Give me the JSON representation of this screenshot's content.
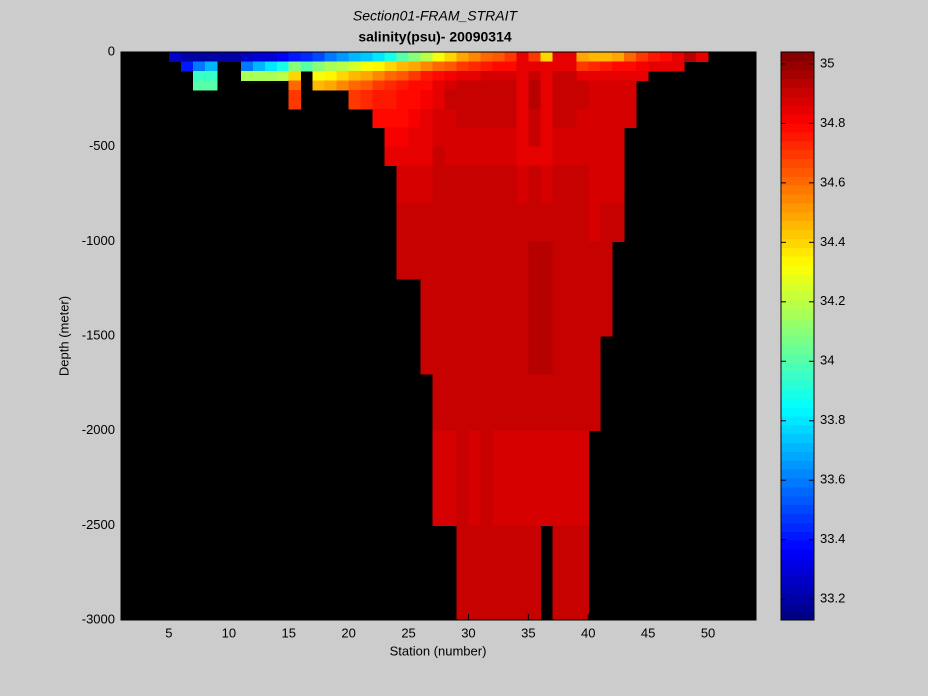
{
  "chart_data": {
    "type": "heatmap",
    "title": "Section01-FRAM_STRAIT",
    "subtitle": "salinity(psu)- 20090314",
    "x_label": "Station (number)",
    "y_label": "Depth (meter)",
    "xlim": [
      1,
      54
    ],
    "xticks": [
      5,
      10,
      15,
      20,
      25,
      30,
      35,
      40,
      45,
      50
    ],
    "ylim": [
      -3000,
      0
    ],
    "yticks": [
      0,
      -500,
      -1000,
      -1500,
      -2000,
      -2500,
      -3000
    ],
    "clim": [
      33.13,
      35.04
    ],
    "cticks": [
      33.2,
      33.4,
      33.6,
      33.8,
      34,
      34.2,
      34.4,
      34.6,
      34.8,
      35
    ],
    "colormap": "jet",
    "background": "#000000",
    "x": [
      1,
      2,
      3,
      4,
      5,
      6,
      7,
      8,
      9,
      10,
      11,
      12,
      13,
      14,
      15,
      16,
      17,
      18,
      19,
      20,
      21,
      22,
      23,
      24,
      25,
      26,
      27,
      28,
      29,
      30,
      31,
      32,
      33,
      34,
      35,
      36,
      37,
      38,
      39,
      40,
      41,
      42,
      43,
      44,
      45,
      46,
      47,
      48,
      49,
      50,
      51,
      52,
      53
    ],
    "depth_edges": [
      0,
      -50,
      -100,
      -150,
      -200,
      -300,
      -400,
      -500,
      -600,
      -800,
      -1000,
      -1200,
      -1500,
      -1700,
      -2000,
      -2500,
      -3000
    ],
    "z": [
      [
        null,
        null,
        null,
        null,
        33.25,
        33.2,
        33.2,
        33.2,
        33.2,
        33.2,
        33.25,
        33.3,
        33.3,
        33.35,
        33.4,
        33.45,
        33.5,
        33.6,
        33.65,
        33.7,
        33.75,
        33.8,
        33.9,
        34.0,
        34.1,
        34.2,
        34.3,
        34.4,
        34.5,
        34.55,
        34.6,
        34.65,
        34.7,
        34.85,
        34.7,
        34.4,
        34.85,
        34.85,
        34.5,
        34.45,
        34.45,
        34.5,
        34.6,
        34.7,
        34.75,
        34.8,
        34.85,
        34.95,
        34.85,
        null,
        null,
        null,
        null
      ],
      [
        null,
        null,
        null,
        null,
        null,
        33.4,
        33.6,
        33.7,
        null,
        null,
        33.6,
        33.7,
        33.8,
        33.9,
        34.1,
        34.0,
        34.1,
        34.15,
        34.2,
        34.25,
        34.3,
        34.35,
        34.4,
        34.45,
        34.5,
        34.55,
        34.6,
        34.65,
        34.7,
        34.72,
        34.75,
        34.78,
        34.8,
        34.85,
        34.85,
        34.85,
        34.85,
        34.85,
        34.7,
        34.72,
        34.75,
        34.78,
        34.8,
        34.82,
        34.85,
        34.85,
        34.85,
        null,
        null,
        null,
        null,
        null,
        null
      ],
      [
        null,
        null,
        null,
        null,
        null,
        null,
        33.95,
        33.95,
        null,
        null,
        34.15,
        34.15,
        34.15,
        34.2,
        34.4,
        null,
        34.3,
        34.35,
        34.4,
        34.45,
        34.5,
        34.55,
        34.6,
        34.65,
        34.7,
        34.75,
        34.8,
        34.82,
        34.85,
        34.85,
        34.88,
        34.88,
        34.88,
        34.85,
        34.9,
        34.85,
        34.9,
        34.9,
        34.85,
        34.85,
        34.85,
        34.85,
        34.85,
        34.85,
        null,
        null,
        null,
        null,
        null,
        null,
        null,
        null,
        null
      ],
      [
        null,
        null,
        null,
        null,
        null,
        null,
        34.0,
        34.0,
        null,
        null,
        null,
        null,
        null,
        null,
        34.6,
        null,
        34.45,
        34.5,
        34.55,
        34.6,
        34.65,
        34.7,
        34.72,
        34.75,
        34.78,
        34.8,
        34.85,
        34.88,
        34.9,
        34.9,
        34.92,
        34.92,
        34.92,
        34.85,
        34.95,
        34.85,
        34.92,
        34.92,
        34.9,
        34.88,
        34.88,
        34.88,
        34.88,
        null,
        null,
        null,
        null,
        null,
        null,
        null,
        null,
        null,
        null
      ],
      [
        null,
        null,
        null,
        null,
        null,
        null,
        null,
        null,
        null,
        null,
        null,
        null,
        null,
        null,
        34.7,
        null,
        null,
        null,
        null,
        34.7,
        34.72,
        34.75,
        34.75,
        34.78,
        34.8,
        34.82,
        34.85,
        34.9,
        34.92,
        34.92,
        34.92,
        34.92,
        34.9,
        34.85,
        34.95,
        34.85,
        34.92,
        34.92,
        34.9,
        34.88,
        34.88,
        34.88,
        34.88,
        null,
        null,
        null,
        null,
        null,
        null,
        null,
        null,
        null,
        null
      ],
      [
        null,
        null,
        null,
        null,
        null,
        null,
        null,
        null,
        null,
        null,
        null,
        null,
        null,
        null,
        null,
        null,
        null,
        null,
        null,
        null,
        null,
        34.78,
        34.78,
        34.8,
        34.82,
        34.85,
        34.88,
        34.88,
        34.9,
        34.9,
        34.9,
        34.9,
        34.9,
        34.85,
        34.92,
        34.85,
        34.9,
        34.9,
        34.88,
        34.88,
        34.88,
        34.88,
        34.88,
        null,
        null,
        null,
        null,
        null,
        null,
        null,
        null,
        null,
        null
      ],
      [
        null,
        null,
        null,
        null,
        null,
        null,
        null,
        null,
        null,
        null,
        null,
        null,
        null,
        null,
        null,
        null,
        null,
        null,
        null,
        null,
        null,
        null,
        34.82,
        34.82,
        34.85,
        34.85,
        34.88,
        34.88,
        34.88,
        34.88,
        34.88,
        34.88,
        34.88,
        34.85,
        34.9,
        34.85,
        34.88,
        34.88,
        34.88,
        34.88,
        34.88,
        34.88,
        null,
        null,
        null,
        null,
        null,
        null,
        null,
        null,
        null,
        null,
        null
      ],
      [
        null,
        null,
        null,
        null,
        null,
        null,
        null,
        null,
        null,
        null,
        null,
        null,
        null,
        null,
        null,
        null,
        null,
        null,
        null,
        null,
        null,
        null,
        34.85,
        34.85,
        34.85,
        34.85,
        34.9,
        34.88,
        34.88,
        34.88,
        34.88,
        34.88,
        34.88,
        34.85,
        34.85,
        34.85,
        34.88,
        34.88,
        34.88,
        34.88,
        34.88,
        34.88,
        null,
        null,
        null,
        null,
        null,
        null,
        null,
        null,
        null,
        null,
        null
      ],
      [
        null,
        null,
        null,
        null,
        null,
        null,
        null,
        null,
        null,
        null,
        null,
        null,
        null,
        null,
        null,
        null,
        null,
        null,
        null,
        null,
        null,
        null,
        null,
        34.88,
        34.88,
        34.88,
        34.9,
        34.9,
        34.9,
        34.9,
        34.9,
        34.9,
        34.9,
        34.88,
        34.92,
        34.88,
        34.9,
        34.9,
        34.9,
        34.88,
        34.88,
        34.88,
        null,
        null,
        null,
        null,
        null,
        null,
        null,
        null,
        null,
        null,
        null
      ],
      [
        null,
        null,
        null,
        null,
        null,
        null,
        null,
        null,
        null,
        null,
        null,
        null,
        null,
        null,
        null,
        null,
        null,
        null,
        null,
        null,
        null,
        null,
        null,
        34.9,
        34.9,
        34.9,
        34.9,
        34.9,
        34.9,
        34.9,
        34.9,
        34.9,
        34.9,
        34.9,
        34.92,
        34.92,
        34.9,
        34.9,
        34.9,
        34.88,
        34.9,
        34.9,
        null,
        null,
        null,
        null,
        null,
        null,
        null,
        null,
        null,
        null,
        null
      ],
      [
        null,
        null,
        null,
        null,
        null,
        null,
        null,
        null,
        null,
        null,
        null,
        null,
        null,
        null,
        null,
        null,
        null,
        null,
        null,
        null,
        null,
        null,
        null,
        34.9,
        34.9,
        34.92,
        34.92,
        34.92,
        34.92,
        34.92,
        34.92,
        34.92,
        34.92,
        34.92,
        34.94,
        34.94,
        34.92,
        34.92,
        34.92,
        34.9,
        34.92,
        null,
        null,
        null,
        null,
        null,
        null,
        null,
        null,
        null,
        null,
        null,
        null
      ],
      [
        null,
        null,
        null,
        null,
        null,
        null,
        null,
        null,
        null,
        null,
        null,
        null,
        null,
        null,
        null,
        null,
        null,
        null,
        null,
        null,
        null,
        null,
        null,
        null,
        null,
        34.92,
        34.92,
        34.92,
        34.92,
        34.92,
        34.92,
        34.92,
        34.92,
        34.92,
        34.94,
        34.94,
        34.92,
        34.92,
        34.92,
        34.9,
        34.92,
        null,
        null,
        null,
        null,
        null,
        null,
        null,
        null,
        null,
        null,
        null,
        null
      ],
      [
        null,
        null,
        null,
        null,
        null,
        null,
        null,
        null,
        null,
        null,
        null,
        null,
        null,
        null,
        null,
        null,
        null,
        null,
        null,
        null,
        null,
        null,
        null,
        null,
        null,
        34.92,
        34.92,
        34.92,
        34.92,
        34.92,
        34.92,
        34.92,
        34.92,
        34.92,
        34.94,
        34.94,
        34.92,
        34.92,
        34.92,
        34.92,
        null,
        null,
        null,
        null,
        null,
        null,
        null,
        null,
        null,
        null,
        null,
        null,
        null
      ],
      [
        null,
        null,
        null,
        null,
        null,
        null,
        null,
        null,
        null,
        null,
        null,
        null,
        null,
        null,
        null,
        null,
        null,
        null,
        null,
        null,
        null,
        null,
        null,
        null,
        null,
        null,
        34.92,
        34.92,
        34.92,
        34.92,
        34.92,
        34.92,
        34.92,
        34.9,
        34.9,
        34.92,
        34.9,
        34.9,
        34.9,
        34.92,
        null,
        null,
        null,
        null,
        null,
        null,
        null,
        null,
        null,
        null,
        null,
        null,
        null
      ],
      [
        null,
        null,
        null,
        null,
        null,
        null,
        null,
        null,
        null,
        null,
        null,
        null,
        null,
        null,
        null,
        null,
        null,
        null,
        null,
        null,
        null,
        null,
        null,
        null,
        null,
        null,
        34.88,
        34.88,
        34.9,
        34.88,
        34.9,
        34.88,
        34.88,
        34.88,
        34.88,
        34.88,
        34.88,
        34.88,
        34.88,
        null,
        null,
        null,
        null,
        null,
        null,
        null,
        null,
        null,
        null,
        null,
        null,
        null,
        null
      ],
      [
        null,
        null,
        null,
        null,
        null,
        null,
        null,
        null,
        null,
        null,
        null,
        null,
        null,
        null,
        null,
        null,
        null,
        null,
        null,
        null,
        null,
        null,
        null,
        null,
        null,
        null,
        null,
        null,
        34.9,
        34.9,
        34.9,
        34.9,
        34.9,
        34.9,
        34.9,
        null,
        34.9,
        34.9,
        34.9,
        null,
        null,
        null,
        null,
        null,
        null,
        null,
        null,
        null,
        null,
        null,
        null,
        null,
        null
      ]
    ]
  }
}
